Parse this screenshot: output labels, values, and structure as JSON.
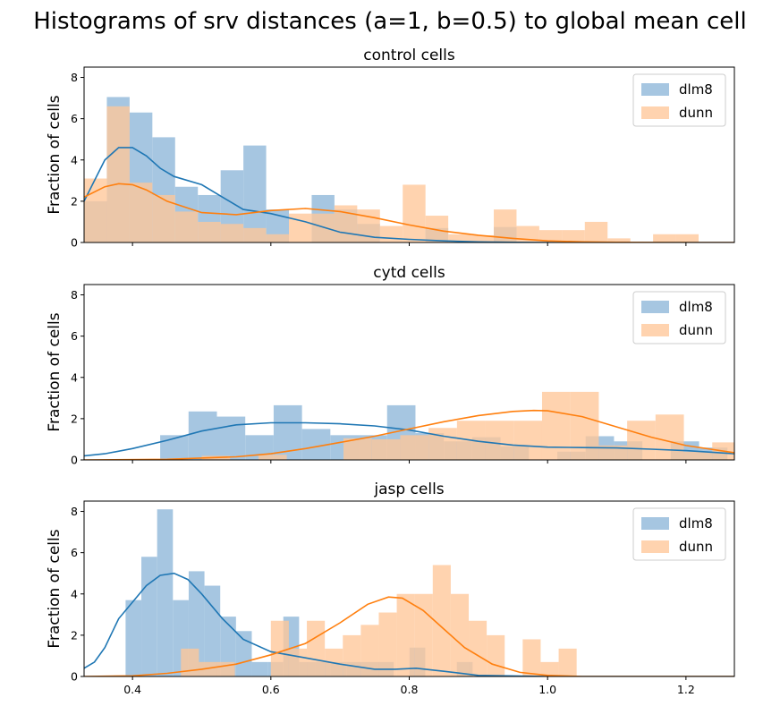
{
  "figure": {
    "title": "Histograms of srv distances (a=1, b=0.5) to global mean cell"
  },
  "colors": {
    "dlm8": "#1f77b4",
    "dunn": "#ff7f0e",
    "dlm8_fill": "#a6c6e1",
    "dunn_fill": "#ffc699",
    "overlap_fill": "#c0a68d"
  },
  "chart_data": [
    {
      "type": "bar",
      "title": "control cells",
      "ylabel": "Fraction of cells",
      "xlabel": "",
      "xlim": [
        0.33,
        1.27
      ],
      "ylim": [
        0,
        8.5
      ],
      "xticks": [
        0.4,
        0.6,
        0.8,
        1.0,
        1.2
      ],
      "xtick_labels": [],
      "yticks": [
        0,
        2,
        4,
        6,
        8
      ],
      "legend": {
        "position": "top-right",
        "entries": [
          "dlm8",
          "dunn"
        ]
      },
      "series": [
        {
          "name": "dlm8",
          "bin_start": 0.33,
          "bin_width": 0.0329,
          "values": [
            2.0,
            7.05,
            6.3,
            5.1,
            2.7,
            2.3,
            3.5,
            4.7,
            1.6,
            0.0,
            2.3,
            1.6,
            0.9,
            0.0,
            0.0,
            0.7,
            0.0,
            0.0,
            0.75
          ],
          "kde_x": [
            0.33,
            0.36,
            0.38,
            0.4,
            0.42,
            0.44,
            0.46,
            0.5,
            0.53,
            0.56,
            0.6,
            0.65,
            0.7,
            0.75,
            0.8,
            0.85,
            0.9,
            0.95,
            1.0,
            1.1,
            1.27
          ],
          "kde_y": [
            2.0,
            4.0,
            4.6,
            4.6,
            4.2,
            3.6,
            3.2,
            2.8,
            2.2,
            1.6,
            1.4,
            1.0,
            0.5,
            0.25,
            0.15,
            0.08,
            0.03,
            0.01,
            0.0,
            0.0,
            0.0
          ]
        },
        {
          "name": "dunn",
          "bin_start": 0.33,
          "bin_width": 0.0329,
          "values": [
            3.1,
            6.6,
            2.9,
            2.3,
            1.5,
            1.0,
            0.9,
            0.7,
            0.4,
            1.4,
            1.4,
            1.8,
            1.6,
            0.8,
            2.8,
            1.3,
            0.4,
            0.35,
            1.6,
            0.8,
            0.6,
            0.6,
            1.0,
            0.2,
            0.0,
            0.4,
            0.4
          ],
          "kde_x": [
            0.33,
            0.36,
            0.38,
            0.4,
            0.42,
            0.45,
            0.5,
            0.55,
            0.6,
            0.65,
            0.7,
            0.75,
            0.8,
            0.85,
            0.9,
            0.95,
            1.0,
            1.05,
            1.1,
            1.2,
            1.27
          ],
          "kde_y": [
            2.2,
            2.7,
            2.85,
            2.8,
            2.55,
            2.0,
            1.45,
            1.35,
            1.55,
            1.65,
            1.5,
            1.2,
            0.85,
            0.55,
            0.35,
            0.2,
            0.08,
            0.03,
            0.01,
            0.0,
            0.0
          ]
        }
      ]
    },
    {
      "type": "bar",
      "title": "cytd cells",
      "ylabel": "Fraction of cells",
      "xlabel": "",
      "xlim": [
        0.33,
        1.27
      ],
      "ylim": [
        0,
        8.5
      ],
      "xticks": [
        0.4,
        0.6,
        0.8,
        1.0,
        1.2
      ],
      "xtick_labels": [],
      "yticks": [
        0,
        2,
        4,
        6,
        8
      ],
      "legend": {
        "position": "top-right",
        "entries": [
          "dlm8",
          "dunn"
        ]
      },
      "series": [
        {
          "name": "dlm8",
          "bin_start": 0.44,
          "bin_width": 0.041,
          "values": [
            1.2,
            2.35,
            2.1,
            1.2,
            2.65,
            1.5,
            1.2,
            1.2,
            2.65,
            1.3,
            0.9,
            1.1,
            0.65,
            0.0,
            0.4,
            1.15,
            0.9,
            0.0,
            0.9,
            0.6
          ],
          "kde_x": [
            0.33,
            0.36,
            0.4,
            0.45,
            0.5,
            0.55,
            0.6,
            0.65,
            0.7,
            0.75,
            0.8,
            0.85,
            0.9,
            0.95,
            1.0,
            1.05,
            1.1,
            1.15,
            1.2,
            1.27
          ],
          "kde_y": [
            0.2,
            0.3,
            0.55,
            0.95,
            1.4,
            1.7,
            1.8,
            1.8,
            1.75,
            1.65,
            1.45,
            1.15,
            0.9,
            0.72,
            0.62,
            0.6,
            0.58,
            0.52,
            0.45,
            0.3
          ]
        },
        {
          "name": "dunn",
          "bin_start": 0.5,
          "bin_width": 0.041,
          "values": [
            0.2,
            0.0,
            0.25,
            0.0,
            0.0,
            1.05,
            1.0,
            1.2,
            1.55,
            1.9,
            1.9,
            1.9,
            3.3,
            3.3,
            0.7,
            1.9,
            2.2,
            0.4,
            0.85
          ],
          "kde_x": [
            0.33,
            0.45,
            0.55,
            0.6,
            0.65,
            0.7,
            0.75,
            0.8,
            0.85,
            0.9,
            0.95,
            0.98,
            1.0,
            1.05,
            1.1,
            1.15,
            1.2,
            1.27
          ],
          "kde_y": [
            0.0,
            0.03,
            0.15,
            0.3,
            0.55,
            0.85,
            1.15,
            1.5,
            1.85,
            2.15,
            2.35,
            2.4,
            2.38,
            2.1,
            1.6,
            1.1,
            0.7,
            0.35
          ]
        }
      ]
    },
    {
      "type": "bar",
      "title": "jasp cells",
      "ylabel": "Fraction of cells",
      "xlabel": "",
      "xlim": [
        0.33,
        1.27
      ],
      "ylim": [
        0,
        8.5
      ],
      "xticks": [
        0.4,
        0.6,
        0.8,
        1.0,
        1.2
      ],
      "xtick_labels": [
        "0.4",
        "0.6",
        "0.8",
        "1.0",
        "1.2"
      ],
      "yticks": [
        0,
        2,
        4,
        6,
        8
      ],
      "legend": {
        "position": "top-right",
        "entries": [
          "dlm8",
          "dunn"
        ]
      },
      "series": [
        {
          "name": "dlm8",
          "bin_start": 0.39,
          "bin_width": 0.0228,
          "values": [
            3.7,
            5.8,
            8.1,
            3.7,
            5.1,
            4.4,
            2.9,
            2.2,
            0.7,
            0.7,
            2.9,
            0.7,
            0.7,
            0.7,
            0.7,
            0.7,
            0.7,
            0.0,
            1.4,
            0.0,
            0.0,
            0.7
          ],
          "kde_x": [
            0.33,
            0.345,
            0.36,
            0.38,
            0.4,
            0.42,
            0.44,
            0.46,
            0.48,
            0.5,
            0.53,
            0.56,
            0.6,
            0.65,
            0.7,
            0.75,
            0.78,
            0.81,
            0.85,
            0.9,
            1.0,
            1.27
          ],
          "kde_y": [
            0.4,
            0.7,
            1.4,
            2.8,
            3.6,
            4.4,
            4.9,
            5.0,
            4.7,
            4.0,
            2.8,
            1.8,
            1.2,
            0.9,
            0.6,
            0.35,
            0.35,
            0.4,
            0.25,
            0.05,
            0.0,
            0.0
          ]
        },
        {
          "name": "dunn",
          "bin_start": 0.47,
          "bin_width": 0.026,
          "values": [
            1.35,
            0.7,
            0.7,
            0.0,
            0.0,
            2.7,
            1.35,
            2.7,
            1.35,
            2.0,
            2.5,
            3.1,
            4.0,
            4.0,
            5.4,
            4.0,
            2.7,
            2.0,
            0.0,
            1.8,
            0.7,
            1.35
          ],
          "kde_x": [
            0.33,
            0.4,
            0.45,
            0.5,
            0.55,
            0.6,
            0.65,
            0.7,
            0.74,
            0.77,
            0.79,
            0.82,
            0.85,
            0.88,
            0.92,
            0.96,
            1.0,
            1.05,
            1.27
          ],
          "kde_y": [
            0.0,
            0.03,
            0.15,
            0.35,
            0.6,
            1.05,
            1.6,
            2.6,
            3.5,
            3.85,
            3.8,
            3.2,
            2.3,
            1.4,
            0.6,
            0.2,
            0.05,
            0.0,
            0.0
          ]
        }
      ]
    }
  ]
}
